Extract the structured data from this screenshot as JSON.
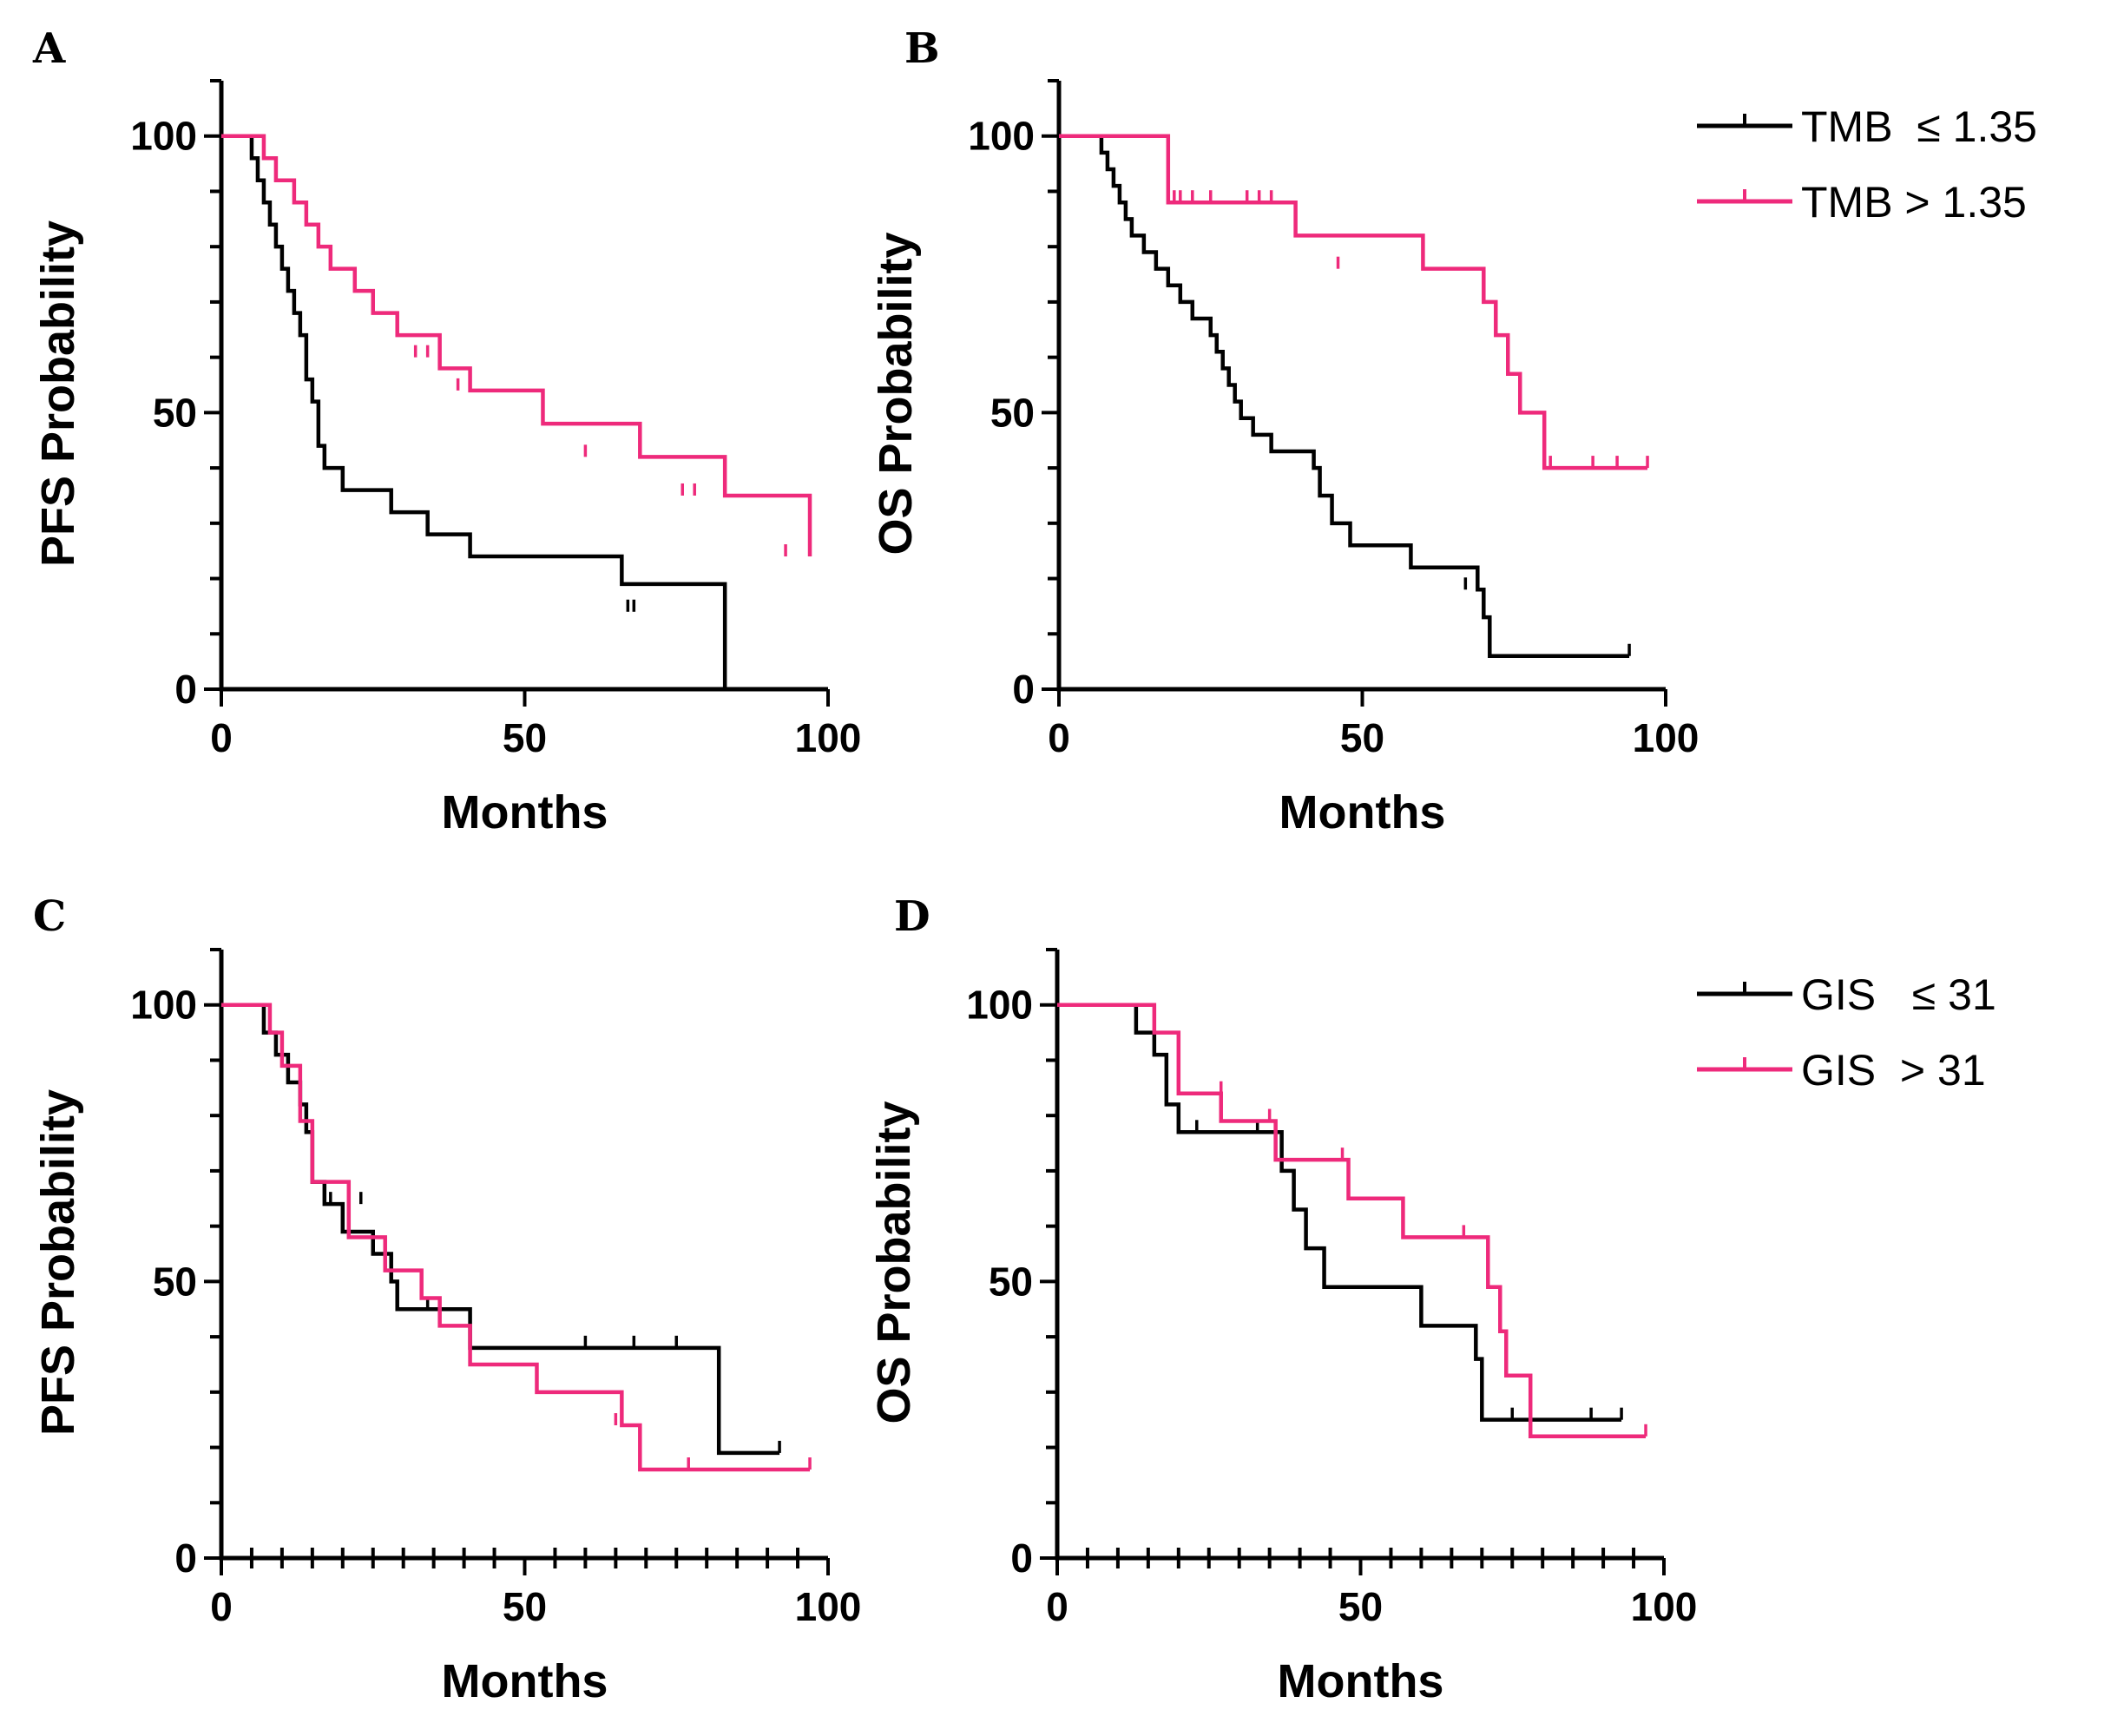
{
  "colors": {
    "black": "#000000",
    "pink": "#ee2a7b"
  },
  "legends": [
    {
      "series": [
        {
          "name": "TMB  ≤ 1.35",
          "color": "#000000"
        },
        {
          "name": "TMB > 1.35",
          "color": "#ee2a7b"
        }
      ]
    },
    {
      "series": [
        {
          "name": "GIS   ≤ 31",
          "color": "#000000"
        },
        {
          "name": "GIS  > 31",
          "color": "#ee2a7b"
        }
      ]
    }
  ],
  "chart_data": [
    {
      "panel": "A",
      "type": "line",
      "xlabel": "Months",
      "ylabel": "PFS Probability",
      "xlim": [
        0,
        100
      ],
      "ylim": [
        0,
        110
      ],
      "xticks": [
        0,
        50,
        100
      ],
      "yticks": [
        0,
        50,
        100
      ],
      "series": [
        {
          "name": "TMB ≤ 1.35",
          "color": "#000000",
          "x": [
            0,
            4,
            5,
            6,
            7,
            8,
            9,
            10,
            11,
            12,
            13,
            14,
            15,
            16,
            17,
            20,
            28,
            34,
            41,
            66,
            83,
            83
          ],
          "y": [
            100,
            100,
            96,
            92,
            88,
            84,
            80,
            76,
            72,
            68,
            64,
            56,
            52,
            44,
            40,
            36,
            32,
            28,
            24,
            19,
            14,
            0
          ],
          "censor_x": [
            67,
            68
          ],
          "censor_y": [
            14,
            14
          ]
        },
        {
          "name": "TMB > 1.35",
          "color": "#ee2a7b",
          "x": [
            0,
            5,
            7,
            9,
            12,
            14,
            16,
            18,
            22,
            25,
            29,
            36,
            41,
            53,
            69,
            83,
            97
          ],
          "y": [
            100,
            100,
            96,
            92,
            88,
            84,
            80,
            76,
            72,
            68,
            64,
            58,
            54,
            48,
            42,
            35,
            24
          ],
          "censor_x": [
            32,
            34,
            39,
            60,
            76,
            78,
            93,
            97
          ],
          "censor_y": [
            60,
            60,
            54,
            42,
            35,
            35,
            24,
            24
          ]
        }
      ]
    },
    {
      "panel": "B",
      "type": "line",
      "xlabel": "Months",
      "ylabel": "OS Probability",
      "xlim": [
        0,
        100
      ],
      "ylim": [
        0,
        110
      ],
      "xticks": [
        0,
        50,
        100
      ],
      "yticks": [
        0,
        50,
        100
      ],
      "series": [
        {
          "name": "TMB ≤ 1.35",
          "color": "#000000",
          "x": [
            0,
            5,
            7,
            8,
            9,
            10,
            11,
            12,
            14,
            16,
            18,
            20,
            22,
            25,
            26,
            27,
            28,
            29,
            30,
            32,
            35,
            42,
            43,
            45,
            48,
            58,
            69,
            70,
            71,
            94
          ],
          "y": [
            100,
            100,
            97,
            94,
            91,
            88,
            85,
            82,
            79,
            76,
            73,
            70,
            67,
            64,
            61,
            58,
            55,
            52,
            49,
            46,
            43,
            40,
            35,
            30,
            26,
            22,
            18,
            13,
            6,
            6
          ],
          "censor_x": [
            67,
            94
          ],
          "censor_y": [
            18,
            6
          ]
        },
        {
          "name": "TMB > 1.35",
          "color": "#ee2a7b",
          "x": [
            0,
            17,
            18,
            38,
            39,
            60,
            70,
            72,
            74,
            76,
            80,
            97
          ],
          "y": [
            100,
            100,
            88,
            88,
            82,
            76,
            70,
            64,
            57,
            50,
            40,
            40
          ],
          "censor_x": [
            19,
            20,
            22,
            25,
            31,
            33,
            35,
            46,
            81,
            88,
            92,
            97
          ],
          "censor_y": [
            88,
            88,
            88,
            88,
            88,
            88,
            88,
            76,
            40,
            40,
            40,
            40
          ]
        }
      ]
    },
    {
      "panel": "C",
      "type": "line",
      "xlabel": "Months",
      "ylabel": "PFS Probability",
      "xlim": [
        0,
        100
      ],
      "ylim": [
        0,
        110
      ],
      "xticks": [
        0,
        50,
        100
      ],
      "yticks": [
        0,
        50,
        100
      ],
      "minor_ticks": true,
      "series": [
        {
          "name": "GIS ≤ 31",
          "color": "#000000",
          "x": [
            0,
            5,
            7,
            9,
            11,
            13,
            14,
            15,
            17,
            20,
            25,
            28,
            29,
            41,
            82,
            92
          ],
          "y": [
            100,
            100,
            95,
            91,
            86,
            82,
            77,
            68,
            64,
            59,
            55,
            50,
            45,
            38,
            19,
            19
          ],
          "censor_x": [
            18,
            23,
            34,
            60,
            68,
            75,
            92
          ],
          "censor_y": [
            64,
            64,
            45,
            38,
            38,
            38,
            19
          ]
        },
        {
          "name": "GIS > 31",
          "color": "#ee2a7b",
          "x": [
            0,
            6,
            8,
            10,
            13,
            15,
            21,
            27,
            33,
            36,
            41,
            52,
            66,
            69,
            97
          ],
          "y": [
            100,
            100,
            95,
            89,
            79,
            68,
            58,
            52,
            47,
            42,
            35,
            30,
            24,
            16,
            16
          ],
          "censor_x": [
            65,
            77,
            97
          ],
          "censor_y": [
            24,
            16,
            16
          ]
        }
      ]
    },
    {
      "panel": "D",
      "type": "line",
      "xlabel": "Months",
      "ylabel": "OS Probability",
      "xlim": [
        0,
        100
      ],
      "ylim": [
        0,
        110
      ],
      "xticks": [
        0,
        50,
        100
      ],
      "yticks": [
        0,
        50,
        100
      ],
      "minor_ticks": true,
      "series": [
        {
          "name": "GIS ≤ 31",
          "color": "#000000",
          "x": [
            0,
            10,
            13,
            16,
            18,
            20,
            35,
            37,
            39,
            41,
            44,
            60,
            69,
            70,
            93
          ],
          "y": [
            100,
            100,
            95,
            91,
            82,
            77,
            77,
            70,
            63,
            56,
            49,
            42,
            36,
            25,
            25
          ],
          "censor_x": [
            23,
            33,
            75,
            88,
            93
          ],
          "censor_y": [
            77,
            77,
            25,
            25,
            25
          ]
        },
        {
          "name": "GIS > 31",
          "color": "#ee2a7b",
          "x": [
            0,
            10,
            16,
            20,
            27,
            36,
            48,
            57,
            71,
            73,
            74,
            78,
            80,
            97
          ],
          "y": [
            100,
            100,
            95,
            84,
            79,
            72,
            65,
            58,
            49,
            41,
            33,
            22,
            22,
            22
          ],
          "censor_x": [
            27,
            35,
            47,
            67,
            97
          ],
          "censor_y": [
            84,
            79,
            72,
            58,
            22
          ]
        }
      ]
    }
  ]
}
